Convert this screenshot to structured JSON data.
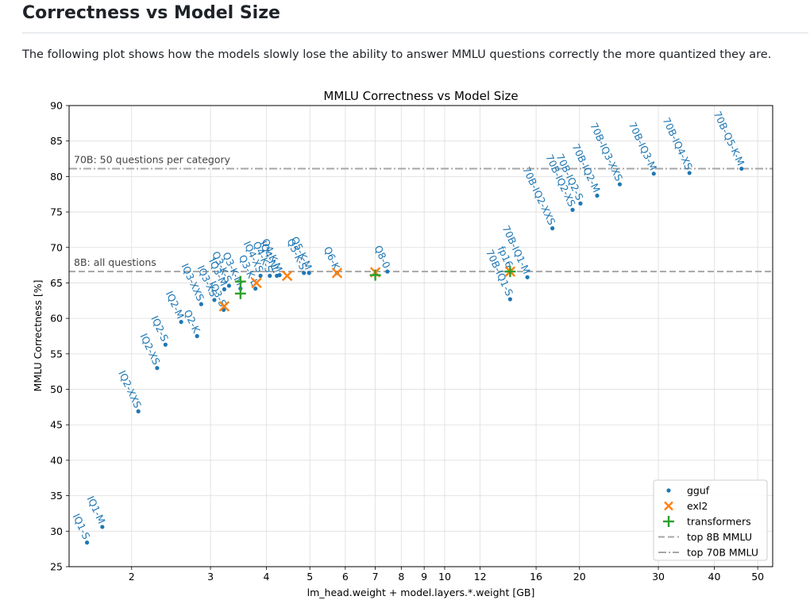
{
  "page": {
    "heading": "Correctness vs Model Size",
    "intro": "The following plot shows how the models slowly lose the ability to answer MMLU questions correctly the more quantized they are."
  },
  "colors": {
    "gguf": "#1f77b4",
    "exl2": "#ff7f0e",
    "transformers": "#2ca02c",
    "ref_line": "#a6a6a6",
    "grid": "#dddddd",
    "axis": "#000000"
  },
  "chart_data": {
    "type": "scatter",
    "title": "MMLU Correctness vs Model Size",
    "xlabel": "lm_head.weight + model.layers.*.weight [GB]",
    "ylabel": "MMLU Correctness [%]",
    "x_scale": "log",
    "xlim": [
      1.45,
      54
    ],
    "ylim": [
      25,
      90
    ],
    "x_ticks": [
      2,
      3,
      4,
      5,
      6,
      7,
      8,
      9,
      10,
      12,
      16,
      20,
      30,
      40,
      50
    ],
    "y_ticks": [
      25,
      30,
      35,
      40,
      45,
      50,
      55,
      60,
      65,
      70,
      75,
      80,
      85,
      90
    ],
    "grid": true,
    "legend_position": "bottom-right",
    "reference_lines": [
      {
        "name": "top 8B MMLU",
        "y": 66.6,
        "style": "dashed",
        "annotation": "8B: all questions"
      },
      {
        "name": "top 70B MMLU",
        "y": 81.1,
        "style": "dashdot",
        "annotation": "70B: 50 questions per category"
      }
    ],
    "series": [
      {
        "name": "gguf",
        "marker": "dot",
        "points": [
          {
            "label": "IQ1-S",
            "x": 1.59,
            "y": 28.4
          },
          {
            "label": "IQ1-M",
            "x": 1.72,
            "y": 30.6
          },
          {
            "label": "IQ2-XXS",
            "x": 2.07,
            "y": 46.9
          },
          {
            "label": "IQ2-XS",
            "x": 2.28,
            "y": 53.0
          },
          {
            "label": "IQ2-S",
            "x": 2.38,
            "y": 56.3
          },
          {
            "label": "IQ2-M",
            "x": 2.58,
            "y": 59.5
          },
          {
            "label": "Q2-K",
            "x": 2.8,
            "y": 57.5
          },
          {
            "label": "IQ3-XXS",
            "x": 2.86,
            "y": 62.0
          },
          {
            "label": "IQ3-XS",
            "x": 3.06,
            "y": 62.6
          },
          {
            "label": "IQ3-S",
            "x": 3.21,
            "y": 61.2
          },
          {
            "label": "IQ3-M",
            "x": 3.22,
            "y": 64.1
          },
          {
            "label": "Q3-K-S",
            "x": 3.3,
            "y": 64.6
          },
          {
            "label": "Q3-K-M",
            "x": 3.5,
            "y": 64.2
          },
          {
            "label": "Q3-K-L",
            "x": 3.78,
            "y": 64.2
          },
          {
            "label": "IQ4-XS",
            "x": 3.88,
            "y": 66.0
          },
          {
            "label": "Q4-K-S",
            "x": 4.07,
            "y": 66.0
          },
          {
            "label": "IQ4-NL",
            "x": 4.22,
            "y": 66.0
          },
          {
            "label": "Q4-K-M",
            "x": 4.28,
            "y": 66.1
          },
          {
            "label": "Q5-K-S",
            "x": 4.85,
            "y": 66.4
          },
          {
            "label": "Q5-K-M",
            "x": 4.98,
            "y": 66.4
          },
          {
            "label": "Q6-K",
            "x": 5.75,
            "y": 66.4
          },
          {
            "label": "Q8-0",
            "x": 7.45,
            "y": 66.6
          },
          {
            "label": "fp16",
            "x": 14.0,
            "y": 66.7
          },
          {
            "label": "70B-IQ1-S",
            "x": 14.0,
            "y": 62.7
          },
          {
            "label": "70B-IQ1-M",
            "x": 15.3,
            "y": 65.8
          },
          {
            "label": "70B-IQ2-XXS",
            "x": 17.4,
            "y": 72.7
          },
          {
            "label": "70B-IQ2-XS",
            "x": 19.3,
            "y": 75.3
          },
          {
            "label": "70B-IQ2-S",
            "x": 20.1,
            "y": 76.2
          },
          {
            "label": "70B-IQ2-M",
            "x": 21.9,
            "y": 77.3
          },
          {
            "label": "70B-IQ3-XXS",
            "x": 24.6,
            "y": 78.9
          },
          {
            "label": "70B-IQ3-M",
            "x": 29.3,
            "y": 80.4
          },
          {
            "label": "70B-IQ4-XS",
            "x": 35.2,
            "y": 80.5
          },
          {
            "label": "70B-Q5-K-M",
            "x": 46.0,
            "y": 81.1
          }
        ]
      },
      {
        "name": "exl2",
        "marker": "x",
        "points": [
          {
            "x": 3.22,
            "y": 61.7
          },
          {
            "x": 3.8,
            "y": 65.0
          },
          {
            "x": 4.45,
            "y": 66.0
          },
          {
            "x": 5.75,
            "y": 66.4
          },
          {
            "x": 7.0,
            "y": 66.5
          },
          {
            "x": 14.0,
            "y": 66.6
          }
        ]
      },
      {
        "name": "transformers",
        "marker": "plus",
        "points": [
          {
            "x": 3.5,
            "y": 65.2
          },
          {
            "x": 3.5,
            "y": 63.5
          },
          {
            "x": 7.0,
            "y": 66.1
          },
          {
            "x": 14.0,
            "y": 66.6
          }
        ]
      }
    ]
  }
}
